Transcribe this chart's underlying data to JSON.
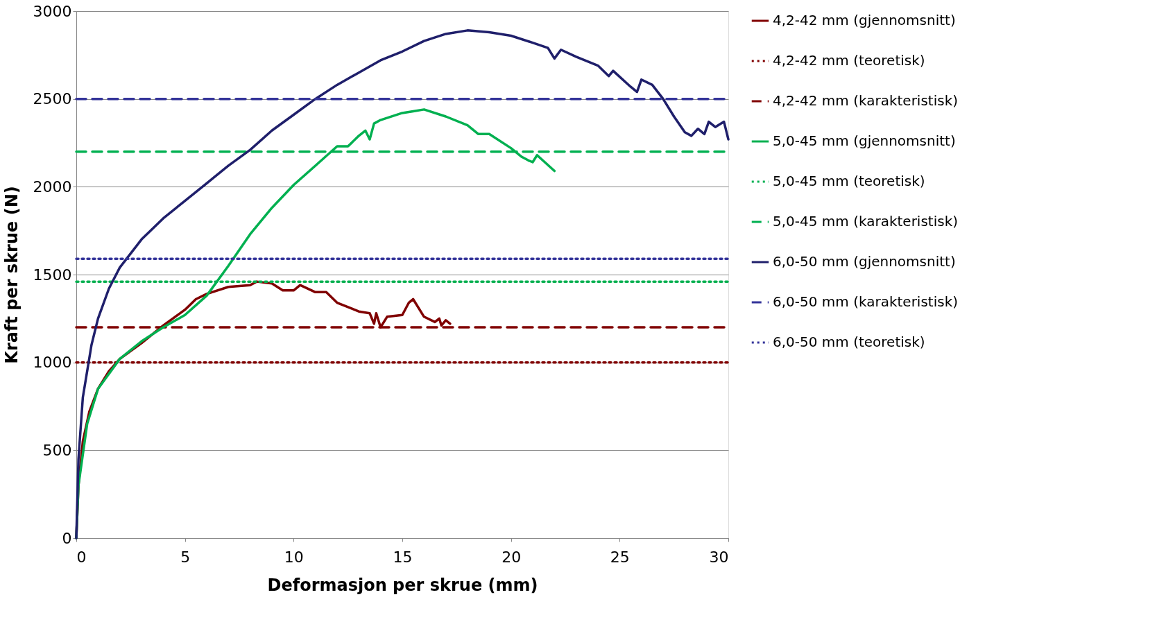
{
  "chart_data": {
    "type": "line",
    "xlabel": "Deformasjon per skrue (mm)",
    "ylabel": "Kraft per skrue (N)",
    "xlim": [
      0,
      30
    ],
    "ylim": [
      0,
      3000
    ],
    "xticks": [
      0,
      5,
      10,
      15,
      20,
      25,
      30
    ],
    "yticks": [
      0,
      500,
      1000,
      1500,
      2000,
      2500,
      3000
    ],
    "grid": "y",
    "legend": "right",
    "marker": "none",
    "series": [
      {
        "name": "4,2-42 mm (gjennomsnitt)",
        "color": "#800000",
        "line_style": "solid",
        "x": [
          0,
          0.1,
          0.3,
          0.6,
          1,
          1.5,
          2,
          3,
          4,
          5,
          5.5,
          6,
          7,
          8,
          8.3,
          9,
          9.5,
          10,
          10.3,
          11,
          11.5,
          12,
          13,
          13.5,
          13.7,
          13.8,
          14,
          14.3,
          15,
          15.3,
          15.5,
          16,
          16.5,
          16.7,
          16.8,
          17,
          17.2
        ],
        "values": [
          0,
          300,
          550,
          720,
          850,
          950,
          1020,
          1110,
          1210,
          1300,
          1360,
          1390,
          1430,
          1440,
          1460,
          1450,
          1410,
          1410,
          1440,
          1400,
          1400,
          1340,
          1290,
          1280,
          1220,
          1280,
          1200,
          1260,
          1270,
          1340,
          1360,
          1260,
          1230,
          1250,
          1210,
          1240,
          1220
        ]
      },
      {
        "name": "4,2-42 mm (teoretisk)",
        "color": "#800000",
        "line_style": "dotted",
        "x": [
          0,
          30
        ],
        "values": [
          1000,
          1000
        ]
      },
      {
        "name": "4,2-42 mm (karakteristisk)",
        "color": "#800000",
        "line_style": "dashed",
        "x": [
          0,
          30
        ],
        "values": [
          1200,
          1200
        ]
      },
      {
        "name": "5,0-45 mm (gjennomsnitt)",
        "color": "#00b050",
        "line_style": "solid",
        "x": [
          0,
          0.1,
          0.5,
          1,
          2,
          3,
          4,
          5,
          6,
          7,
          8,
          9,
          10,
          11,
          12,
          12.5,
          13,
          13.3,
          13.5,
          13.7,
          14,
          15,
          15.5,
          16,
          17,
          18,
          18.5,
          19,
          20,
          20.5,
          20.8,
          21,
          21.2,
          22
        ],
        "values": [
          0,
          300,
          650,
          850,
          1020,
          1120,
          1200,
          1270,
          1380,
          1550,
          1730,
          1880,
          2010,
          2120,
          2230,
          2230,
          2290,
          2320,
          2270,
          2360,
          2380,
          2420,
          2430,
          2440,
          2400,
          2350,
          2300,
          2300,
          2220,
          2170,
          2150,
          2140,
          2180,
          2090
        ]
      },
      {
        "name": "5,0-45 mm (teoretisk)",
        "color": "#00b050",
        "line_style": "dotted",
        "x": [
          0,
          30
        ],
        "values": [
          1460,
          1460
        ]
      },
      {
        "name": "5,0-45 mm (karakteristisk)",
        "color": "#00b050",
        "line_style": "dashed",
        "x": [
          0,
          30
        ],
        "values": [
          2200,
          2200
        ]
      },
      {
        "name": "6,0-50 mm (gjennomsnitt)",
        "color": "#1f1f6b",
        "line_style": "solid",
        "x": [
          0,
          0.1,
          0.3,
          0.7,
          1,
          1.5,
          2,
          3,
          4,
          5,
          6,
          7,
          8,
          9,
          10,
          11,
          12,
          13,
          14,
          15,
          16,
          17,
          18,
          19,
          20,
          21,
          21.7,
          22,
          22.3,
          23,
          24,
          24.5,
          24.7,
          25.5,
          25.8,
          26,
          26.5,
          27,
          27.5,
          28,
          28.3,
          28.6,
          28.9,
          29.1,
          29.4,
          29.8,
          30
        ],
        "values": [
          0,
          450,
          800,
          1100,
          1250,
          1420,
          1540,
          1700,
          1820,
          1920,
          2020,
          2120,
          2210,
          2320,
          2410,
          2500,
          2580,
          2650,
          2720,
          2770,
          2830,
          2870,
          2890,
          2880,
          2860,
          2820,
          2790,
          2730,
          2780,
          2740,
          2690,
          2630,
          2660,
          2570,
          2540,
          2610,
          2580,
          2500,
          2400,
          2310,
          2290,
          2330,
          2300,
          2370,
          2340,
          2370,
          2270
        ]
      },
      {
        "name": "6,0-50 mm (karakteristisk)",
        "color": "#333399",
        "line_style": "dashed",
        "x": [
          0,
          30
        ],
        "values": [
          2500,
          2500
        ]
      },
      {
        "name": "6,0-50 mm (teoretisk)",
        "color": "#333399",
        "line_style": "dotted",
        "x": [
          0,
          30
        ],
        "values": [
          1590,
          1590
        ]
      }
    ]
  }
}
